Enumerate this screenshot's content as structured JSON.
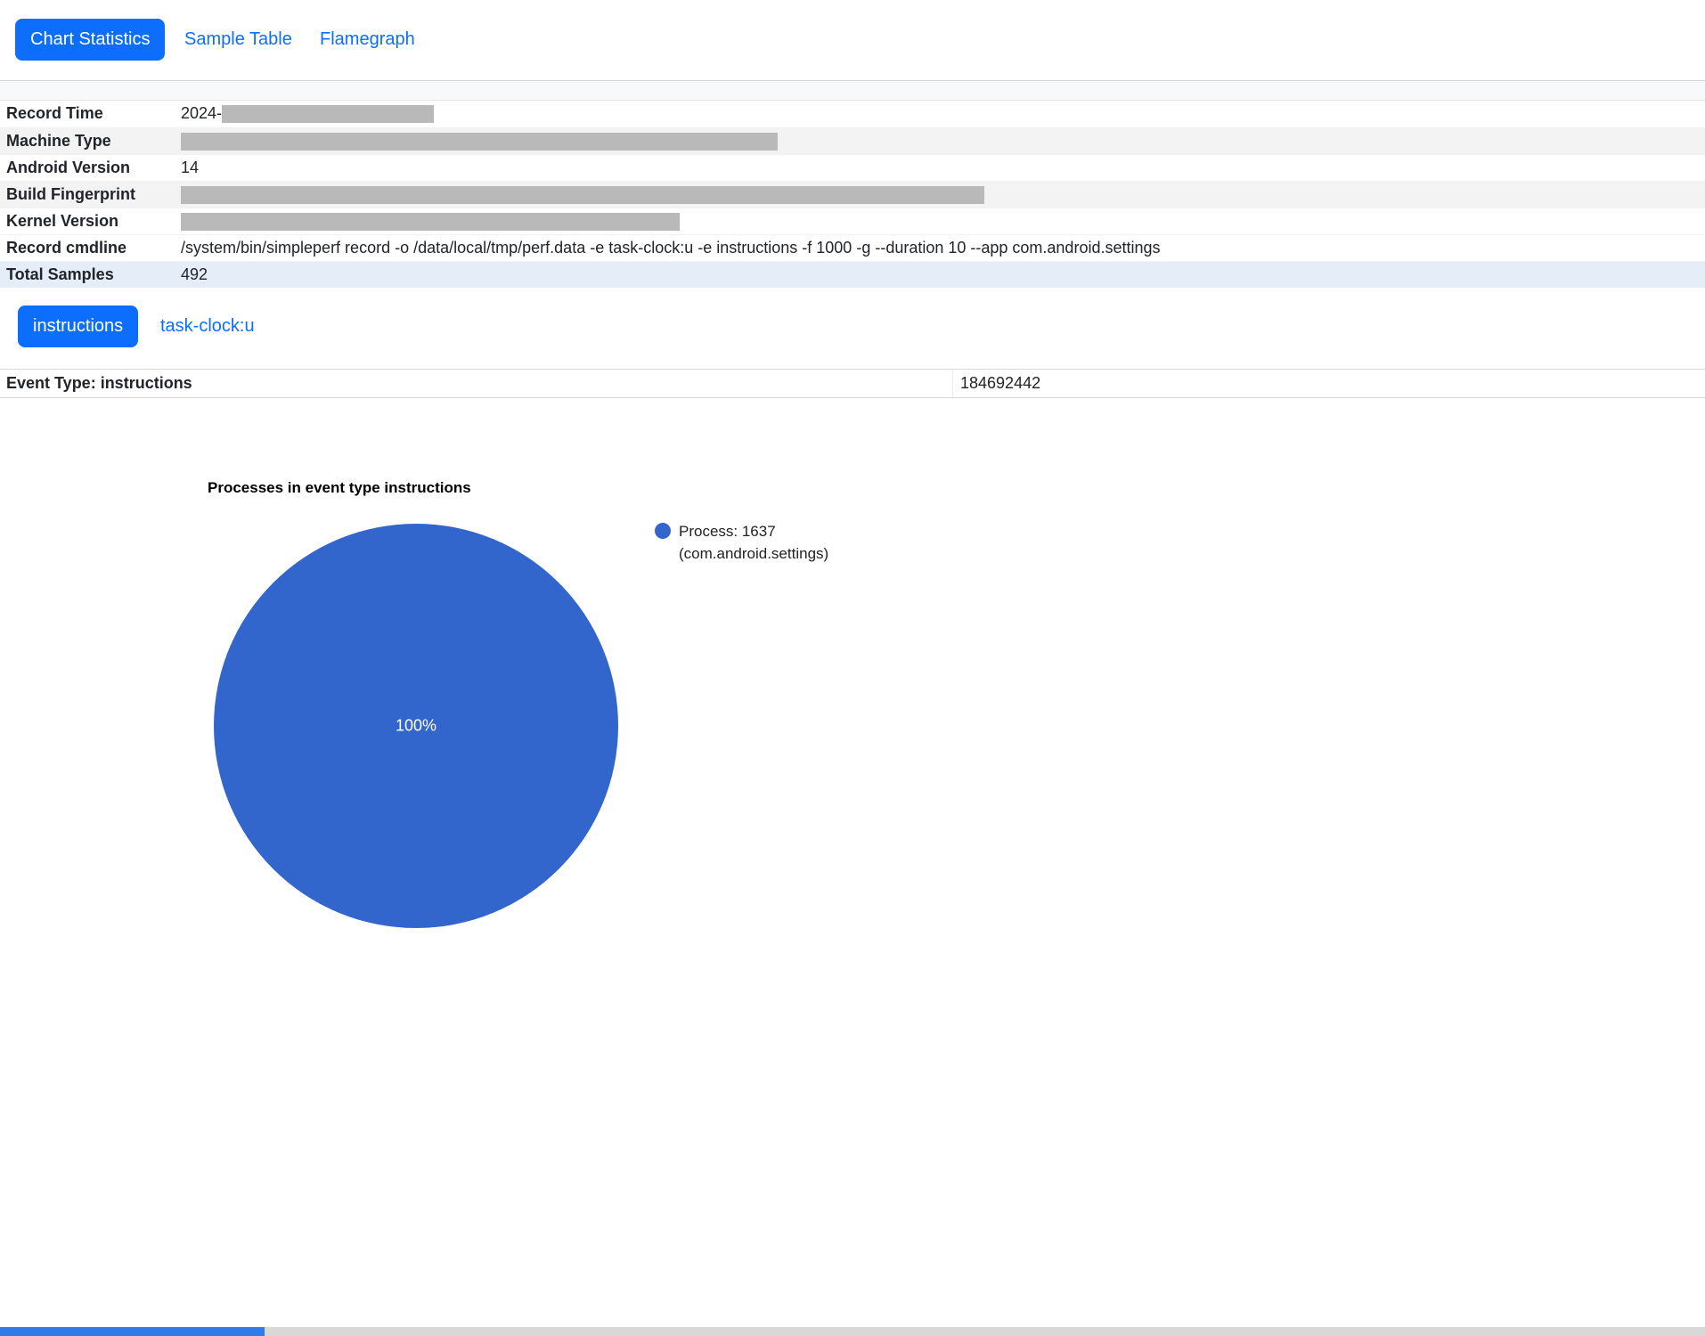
{
  "tabs": [
    {
      "label": "Chart Statistics",
      "active": true
    },
    {
      "label": "Sample Table",
      "active": false
    },
    {
      "label": "Flamegraph",
      "active": false
    }
  ],
  "info_table": {
    "rows": [
      {
        "label": "Record Time",
        "value": "2024-",
        "redacted": true,
        "redact_width": 238
      },
      {
        "label": "Machine Type",
        "value": "",
        "redacted": true,
        "redact_width": 670
      },
      {
        "label": "Android Version",
        "value": "14",
        "redacted": false,
        "redact_width": 0
      },
      {
        "label": "Build Fingerprint",
        "value": "",
        "redacted": true,
        "redact_width": 902
      },
      {
        "label": "Kernel Version",
        "value": "",
        "redacted": true,
        "redact_width": 560
      },
      {
        "label": "Record cmdline",
        "value": "/system/bin/simpleperf record -o /data/local/tmp/perf.data -e task-clock:u -e instructions -f 1000 -g --duration 10 --app com.android.settings",
        "redacted": false,
        "redact_width": 0
      },
      {
        "label": "Total Samples",
        "value": "492",
        "redacted": false,
        "redact_width": 0,
        "highlighted": true
      }
    ]
  },
  "event_selector": [
    {
      "label": "instructions",
      "active": true
    },
    {
      "label": "task-clock:u",
      "active": false
    }
  ],
  "event_summary": {
    "title": "Event Type: instructions",
    "total_event_count": "184692442"
  },
  "chart_data": {
    "type": "pie",
    "title": "Processes in event type instructions",
    "slices": [
      {
        "label": "Process: 1637 (com.android.settings)",
        "value": 100,
        "percent_label": "100%",
        "color": "#3366cc"
      }
    ],
    "legend_position": "right",
    "legend": {
      "line1": "Process: 1637",
      "line2": "(com.android.settings)"
    }
  },
  "bottom_strip": {
    "left_color": "#2f7bea",
    "left_width": 297,
    "right_color": "#d8d8d8"
  },
  "colors": {
    "accent": "#0d6efd",
    "pie": "#3366cc",
    "redacted": "#b9b9b9",
    "stripe": "#f3f3f3",
    "highlight_row": "#e4edf8",
    "border": "#d9d9d9"
  }
}
